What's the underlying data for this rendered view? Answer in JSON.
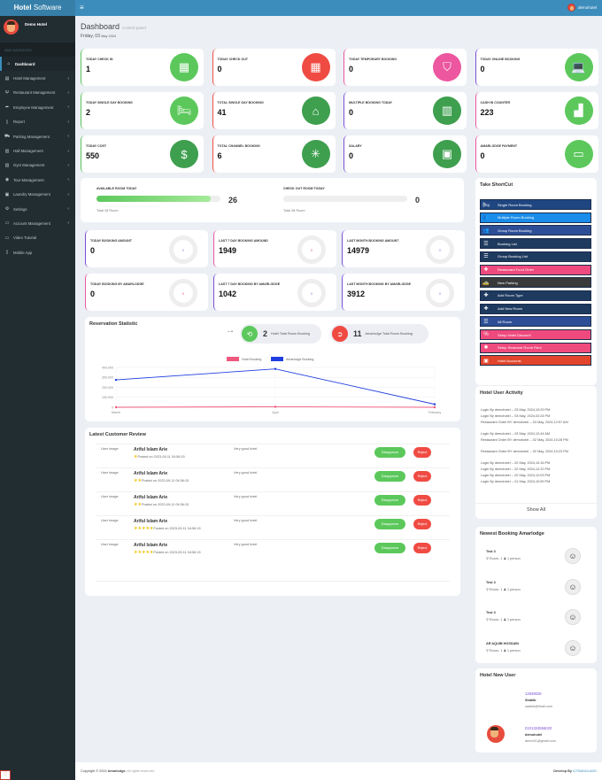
{
  "header": {
    "brand_bold": "Hotel",
    "brand_rest": " Software",
    "menu_icon": "hamburger-icon",
    "user_name": "demohotel"
  },
  "sidebar": {
    "user_name": "Demo Hotel",
    "nav_header": "MAIN NAVIGATION",
    "items": [
      {
        "label": "Dashboard",
        "icon": "dashboard-icon",
        "active": true,
        "submenu": false
      },
      {
        "label": "Hotel Management",
        "icon": "building-icon",
        "submenu": true
      },
      {
        "label": "Restaurant Management",
        "icon": "cutlery-icon",
        "submenu": true
      },
      {
        "label": "Employee Management",
        "icon": "share-icon",
        "submenu": true
      },
      {
        "label": "Report",
        "icon": "file-icon",
        "submenu": true
      },
      {
        "label": "Parking Management",
        "icon": "car-icon",
        "submenu": true
      },
      {
        "label": "Hall Management",
        "icon": "bank-icon",
        "submenu": true
      },
      {
        "label": "Gym Management",
        "icon": "bank-icon",
        "submenu": true
      },
      {
        "label": "Tour Management",
        "icon": "globe-icon",
        "submenu": true
      },
      {
        "label": "Laundry Management",
        "icon": "washer-icon",
        "submenu": true
      },
      {
        "label": "Settings",
        "icon": "cogs-icon",
        "submenu": true
      },
      {
        "label": "Account Management",
        "icon": "money-icon",
        "submenu": true
      },
      {
        "label": "Video Tutorial",
        "icon": "monitor-icon",
        "submenu": false
      },
      {
        "label": "Mobile App",
        "icon": "mobile-icon",
        "submenu": false
      }
    ]
  },
  "page": {
    "title": "Dashboard",
    "subtitle": "Control panel",
    "date_main": "Friday, 03",
    "date_small": "May 2024"
  },
  "stats": [
    {
      "label": "TODAY CHECK IN",
      "value": "1",
      "color": "#5cc85c",
      "icon": "calendar-icon",
      "glyph": "▦",
      "circle": "green"
    },
    {
      "label": "TODAY CHECK OUT",
      "value": "0",
      "color": "#ef4b43",
      "icon": "calendar-icon",
      "glyph": "▦",
      "circle": "red"
    },
    {
      "label": "TODAY TEMPORARY BOOKING",
      "value": "0",
      "color": "#ec579f",
      "icon": "shield-icon",
      "glyph": "⛉",
      "circle": "pink"
    },
    {
      "label": "TODAY ONLINE BOOKING",
      "value": "0",
      "color": "#7a4fd6",
      "icon": "laptop-money-icon",
      "glyph": "💻",
      "circle": "green"
    },
    {
      "label": "TODAY SINGLE DAY BOOKING",
      "value": "2",
      "color": "#5cc85c",
      "icon": "bed-icon",
      "glyph": "🛏",
      "circle": "green"
    },
    {
      "label": "TOTAL SINGLE DAY BOOKING",
      "value": "41",
      "color": "#ef4b43",
      "icon": "warehouse-icon",
      "glyph": "⌂",
      "circle": "dgreen"
    },
    {
      "label": "MULTIPLE BOOKING TODAY",
      "value": "0",
      "color": "#7a4fd6",
      "icon": "map-icon",
      "glyph": "▥",
      "circle": "dgreen"
    },
    {
      "label": "CASH IN COUNTER",
      "value": "223",
      "color": "#ec579f",
      "icon": "cash-register-icon",
      "glyph": "▟",
      "circle": "green"
    },
    {
      "label": "TODAY COST",
      "value": "550",
      "color": "#5cc85c",
      "icon": "cost-icon",
      "glyph": "$",
      "circle": "dgreen"
    },
    {
      "label": "TOTAL CHANNEL BOOKING",
      "value": "6",
      "color": "#ef4b43",
      "icon": "network-icon",
      "glyph": "✳",
      "circle": "dgreen"
    },
    {
      "label": "SALARY",
      "value": "0",
      "color": "#7a4fd6",
      "icon": "salary-shield-icon",
      "glyph": "▣",
      "circle": "dgreen"
    },
    {
      "label": "AMARLODGE PAYMENT",
      "value": "0",
      "color": "#ec579f",
      "icon": "card-payment-icon",
      "glyph": "▭",
      "circle": "green"
    }
  ],
  "rooms": {
    "available_label": "AVAILABLE ROOM TODAY",
    "available_value": "26",
    "available_pct": 92,
    "available_total": "Total 28 Room",
    "checkout_label": "CHECK OUT ROOM TODAY",
    "checkout_value": "0",
    "checkout_pct": 0,
    "checkout_total": "Total 28 Room"
  },
  "amounts": [
    {
      "label": "TODAY BOOKING AMOUNT",
      "value": "0",
      "ring": "0",
      "color": "#7a4fd6",
      "ring_color": "#9b7fe0"
    },
    {
      "label": "LAST 7 DAY BOOKING AMOUND",
      "value": "1949",
      "ring": "0",
      "color": "#ec579f",
      "ring_color": "#ec579f"
    },
    {
      "label": "LAST MONTH BOOKING AMOUNT",
      "value": "14979",
      "ring": "0",
      "color": "#7a4fd6",
      "ring_color": "#9b7fe0"
    },
    {
      "label": "TODAY BOOKING BY AMARLODGE",
      "value": "0",
      "ring": "0",
      "color": "#ec579f",
      "ring_color": "#ec579f"
    },
    {
      "label": "LAST 7 DAY BOOKING BY AMARLODGE",
      "value": "1042",
      "ring": "0",
      "color": "#7a4fd6",
      "ring_color": "#9b7fe0"
    },
    {
      "label": "LAST MONTH BOOKING BY AMARLODGE",
      "value": "3912",
      "ring": "0",
      "color": "#7a4fd6",
      "ring_color": "#9b7fe0"
    }
  ],
  "reservation": {
    "title": "Reservation Statistic",
    "dash": "– •",
    "hotel_count": "2",
    "hotel_label": "Hotel Total Room Booking",
    "amar_count": "11",
    "amar_label": "Amarlodge Total Room Booking"
  },
  "chart_data": {
    "type": "line",
    "title": "",
    "categories": [
      "March",
      "April",
      "February"
    ],
    "series": [
      {
        "name": "Hotel Booking",
        "color": "#f0587d",
        "values": [
          0,
          5000,
          0
        ]
      },
      {
        "name": "Amarlodge Booking",
        "color": "#1f3fe0",
        "values": [
          275000,
          385000,
          30000
        ]
      }
    ],
    "yticks": [
      "400,000",
      "300,000",
      "200,000",
      "100,000",
      "0"
    ],
    "ylim": [
      0,
      400000
    ],
    "grid": true,
    "legend_position": "top"
  },
  "reviews": {
    "title": "Latest Customer Review",
    "items": [
      {
        "img_alt": "User Image",
        "name": "Ariful Islam Arie",
        "stars": "★",
        "posted": "Posted on 2023-09-11 04:56:15",
        "message": "Very good hotel",
        "disapprove": "Disapprove",
        "reject": "Reject"
      },
      {
        "img_alt": "User Image",
        "name": "Ariful Islam Arie",
        "stars": "★★",
        "posted": "Posted on 2023-09-11 04:56:15",
        "message": "Very good hotel",
        "disapprove": "Disapprove",
        "reject": "Reject"
      },
      {
        "img_alt": "User Image",
        "name": "Ariful Islam Arie",
        "stars": "★★",
        "posted": "Posted on 2023-09-11 04:56:15",
        "message": "Very good hotel",
        "disapprove": "Disapprove",
        "reject": "Reject"
      },
      {
        "img_alt": "User Image",
        "name": "Ariful Islam Arie",
        "stars": "★★★★★",
        "posted": "Posted on 2023-09-11 04:56:15",
        "message": "Very good hotel",
        "disapprove": "Disapprove",
        "reject": "Reject"
      },
      {
        "img_alt": "User Image",
        "name": "Ariful Islam Arie",
        "stars": "★★★★★",
        "posted": "Posted on 2023-09-11 04:56:15",
        "message": "Very good hotel",
        "disapprove": "Disapprove",
        "reject": "Reject"
      }
    ]
  },
  "shortcuts": {
    "title": "Take ShortCut",
    "items": [
      {
        "label": "Single Room Booking",
        "bg": "#1f4680",
        "glyph": "🛏",
        "icon": "bed-icon"
      },
      {
        "label": "Multiple Room Booking",
        "bg": "#1a8cea",
        "glyph": "👥",
        "icon": "users-icon"
      },
      {
        "label": "Group Room Booking",
        "bg": "#2d4e96",
        "glyph": "👥",
        "icon": "users-icon"
      },
      {
        "label": "Booking List",
        "bg": "#1e3a5f",
        "glyph": "☰",
        "icon": "list-icon"
      },
      {
        "label": "Group Booking List",
        "bg": "#1e3a5f",
        "glyph": "☰",
        "icon": "list-icon"
      },
      {
        "label": "Restaurant Food Order",
        "bg": "#ef4a7d",
        "glyph": "✚",
        "icon": "plus-icon"
      },
      {
        "label": "New Parking",
        "bg": "#3a3a3a",
        "glyph": "🚕",
        "icon": "taxi-icon"
      },
      {
        "label": "Add Room Type",
        "bg": "#1e3a5f",
        "glyph": "✚",
        "icon": "plus-icon"
      },
      {
        "label": "Add New Room",
        "bg": "#1e3a5f",
        "glyph": "✚",
        "icon": "plus-icon"
      },
      {
        "label": "All Room",
        "bg": "#2d4e96",
        "glyph": "☰",
        "icon": "list-icon"
      },
      {
        "label": "Setup Hotel Discount",
        "bg": "#ef4a7d",
        "glyph": "%",
        "icon": "percent-icon"
      },
      {
        "label": "Setup Seasonal Room Rent",
        "bg": "#ef4a7d",
        "glyph": "✺",
        "icon": "sun-icon"
      },
      {
        "label": "Hotel Accounts",
        "bg": "#e2452c",
        "glyph": "▣",
        "icon": "money-icon"
      }
    ]
  },
  "activity": {
    "title": "Hotel User Activity",
    "items": [
      "Login By demohotel -- 03 May, 2024,10:29 PM",
      "Login By demohotel -- 03 May, 2024,02:24 PM",
      "Restaurant Order BY demohotel -- 03 May, 2024,12:57 AM",
      "Login By demohotel -- 03 May, 2024,12:44 AM",
      "Restaurant Order BY demohotel -- 02 May, 2024,10:28 PM",
      "Restaurant Order BY demohotel -- 02 May, 2024,10:23 PM",
      "Login By demohotel -- 02 May, 2024,10:16 PM",
      "Login By demohotel -- 02 May, 2024,12:22 PM",
      "Login By demohotel -- 02 May, 2024,12:03 PM",
      "Login By demohotel -- 01 May, 2024,10:59 PM"
    ],
    "show_all": "Show All"
  },
  "newest_booking": {
    "title": "Newest Booking Amarlodge",
    "items": [
      {
        "name": "Test 3",
        "room": "Room- 1",
        "persons": "1 person"
      },
      {
        "name": "Test 3",
        "room": "Room- 1",
        "persons": "1 person"
      },
      {
        "name": "Test 3",
        "room": "Room- 1",
        "persons": "1 person"
      },
      {
        "name": "AR AQUIB HOSSAIN",
        "room": "Room- 1",
        "persons": "1 person"
      }
    ]
  },
  "new_users": {
    "title": "Hotel New User",
    "items": [
      {
        "phone": "12839028",
        "name": "Shakib",
        "email": "saakib@fmail.com"
      },
      {
        "phone": "0101324556020",
        "name": "demohotel",
        "email": "demo01@gmail.com"
      }
    ]
  },
  "footer": {
    "copyright_prefix": "Copyright © 2024 ",
    "brand": "Amarlodge.",
    "rights": " All rights reserved.",
    "develop_prefix": "Develop By ",
    "developer": "ICTBANGLADD"
  }
}
